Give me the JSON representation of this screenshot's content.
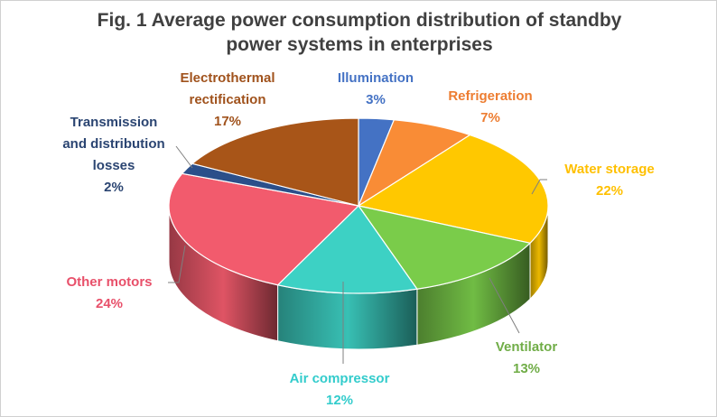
{
  "chart_data": {
    "type": "pie",
    "title": "Fig. 1 Average power consumption distribution of standby power systems in enterprises",
    "title_lines": [
      "Fig. 1 Average power consumption distribution of standby",
      "power systems in enterprises"
    ],
    "style": "3d",
    "slices": [
      {
        "name": "Illumination",
        "value": 3,
        "label_lines": [
          "Illumination"
        ],
        "pct_text": "3%",
        "color": "#4472C4",
        "label_color": "#4472C4"
      },
      {
        "name": "Refrigeration",
        "value": 7,
        "label_lines": [
          "Refrigeration"
        ],
        "pct_text": "7%",
        "color": "#F98C36",
        "label_color": "#ED7D31"
      },
      {
        "name": "Water storage",
        "value": 22,
        "label_lines": [
          "Water storage"
        ],
        "pct_text": "22%",
        "color": "#FFC800",
        "label_color": "#FFC000"
      },
      {
        "name": "Ventilator",
        "value": 13,
        "label_lines": [
          "Ventilator"
        ],
        "pct_text": "13%",
        "color": "#7ACC4A",
        "label_color": "#70AD47"
      },
      {
        "name": "Air compressor",
        "value": 12,
        "label_lines": [
          "Air compressor"
        ],
        "pct_text": "12%",
        "color": "#3DD1C4",
        "label_color": "#33CCCC"
      },
      {
        "name": "Other motors",
        "value": 24,
        "label_lines": [
          "Other motors"
        ],
        "pct_text": "24%",
        "color": "#F25B6D",
        "label_color": "#E8506A"
      },
      {
        "name": "Transmission and distribution losses",
        "value": 2,
        "label_lines": [
          "Transmission",
          "and distribution",
          "losses"
        ],
        "pct_text": "2%",
        "color": "#2B4F8A",
        "label_color": "#2B4572"
      },
      {
        "name": "Electrothermal rectification",
        "value": 17,
        "label_lines": [
          "Electrothermal",
          "rectification"
        ],
        "pct_text": "17%",
        "color": "#A85518",
        "label_color": "#A0521C"
      }
    ],
    "legend": "none"
  }
}
